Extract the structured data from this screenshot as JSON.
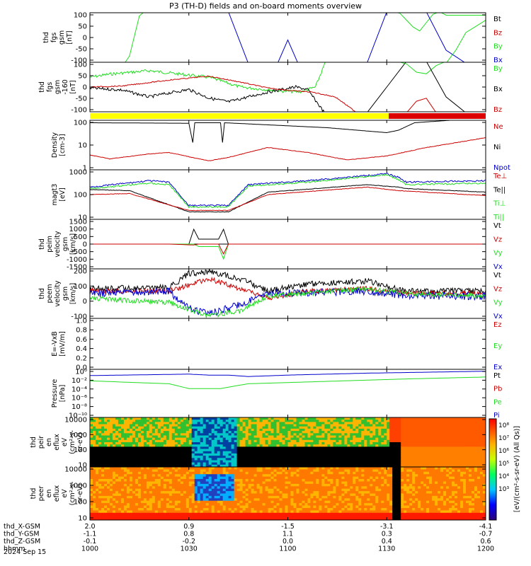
{
  "title": "P3 (TH-D) fields and on-board moments overview",
  "colors": {
    "black": "#000000",
    "red": "#cc0000",
    "green": "#22dd22",
    "blue": "#0000cc",
    "yellow": "#ffff00",
    "bar_red": "#dd0000"
  },
  "chart_data": [
    {
      "type": "line",
      "ylabel": [
        "thd",
        "fgs",
        "gsm",
        "[nT]"
      ],
      "yticks": [
        "100",
        "50",
        "0",
        "-50",
        "-100"
      ],
      "ylim": [
        -100,
        100
      ],
      "legend": [
        {
          "label": "Bt",
          "color": "#000000"
        },
        {
          "label": "Bz",
          "color": "#cc0000"
        },
        {
          "label": "By",
          "color": "#22dd22"
        },
        {
          "label": "Bx",
          "color": "#0000cc"
        }
      ]
    },
    {
      "type": "line",
      "ylabel": [
        "thd",
        "fgs",
        "gsm",
        "-160",
        "[nT]"
      ],
      "yticks": [
        "100",
        "50",
        "0",
        "-50",
        "-100"
      ],
      "ylim": [
        -130,
        100
      ],
      "legend": [
        {
          "label": "By",
          "color": "#22dd22"
        },
        {
          "label": "Bx",
          "color": "#000000"
        },
        {
          "label": "Bz",
          "color": "#cc0000"
        }
      ]
    },
    {
      "type": "bar",
      "note": "mode bar",
      "segments": [
        {
          "from": "1000",
          "to": "1135",
          "color": "yellow"
        },
        {
          "from": "1135",
          "to": "1200",
          "color": "red"
        }
      ]
    },
    {
      "type": "line",
      "ylabel": [
        "Density",
        "[cm-3]"
      ],
      "yticks": [
        "100",
        "10",
        "1"
      ],
      "yscale": "log",
      "legend": [
        {
          "label": "Ne",
          "color": "#cc0000"
        },
        {
          "label": "Ni",
          "color": "#000000"
        },
        {
          "label": "Npot",
          "color": "#0000cc"
        }
      ]
    },
    {
      "type": "line",
      "ylabel": [
        "magt3",
        "[eV]"
      ],
      "yticks": [
        "1000",
        "100",
        "10"
      ],
      "yscale": "log",
      "legend": [
        {
          "label": "Te⊥",
          "color": "#cc0000"
        },
        {
          "label": "Te||",
          "color": "#000000"
        },
        {
          "label": "Ti⊥",
          "color": "#22dd22"
        },
        {
          "label": "Ti||",
          "color": "#22dd22"
        }
      ]
    },
    {
      "type": "line",
      "ylabel": [
        "thd",
        "peim",
        "velocity",
        "gsm",
        "[km/s]"
      ],
      "yticks": [
        "1500",
        "1000",
        "500",
        "0",
        "-500",
        "-1000",
        "-1500"
      ],
      "legend": [
        {
          "label": "Vt",
          "color": "#000000"
        },
        {
          "label": "Vz",
          "color": "#cc0000"
        },
        {
          "label": "Vy",
          "color": "#22dd22"
        },
        {
          "label": "Vx",
          "color": "#0000cc"
        }
      ]
    },
    {
      "type": "line",
      "ylabel": [
        "thd",
        "peem",
        "velocity",
        "gsm",
        "[km/s]"
      ],
      "yticks": [
        "200",
        "100",
        "0",
        "-100"
      ],
      "legend": [
        {
          "label": "Vt",
          "color": "#000000"
        },
        {
          "label": "Vz",
          "color": "#cc0000"
        },
        {
          "label": "Vy",
          "color": "#22dd22"
        },
        {
          "label": "Vx",
          "color": "#0000cc"
        }
      ]
    },
    {
      "type": "line",
      "ylabel": [
        "E=-VxB",
        "[mV/m]"
      ],
      "yticks": [
        "1.0",
        "0.8",
        "0.6",
        "0.4",
        "0.2",
        "0.0"
      ],
      "legend": [
        {
          "label": "Ez",
          "color": "#cc0000"
        },
        {
          "label": "Ey",
          "color": "#22dd22"
        },
        {
          "label": "Ex",
          "color": "#0000cc"
        }
      ]
    },
    {
      "type": "line",
      "ylabel": [
        "Pressure",
        "[nPa]"
      ],
      "yticks": [
        "10⁰",
        "10⁻²",
        "10⁻⁴",
        "10⁻⁶",
        "10⁻⁸",
        "10⁻¹⁰"
      ],
      "yscale": "log",
      "legend": [
        {
          "label": "Pt",
          "color": "#000000"
        },
        {
          "label": "Pb",
          "color": "#cc0000"
        },
        {
          "label": "Pe",
          "color": "#22dd22"
        },
        {
          "label": "Pi",
          "color": "#0000cc"
        }
      ]
    },
    {
      "type": "heatmap",
      "ylabel": [
        "thd",
        "peir",
        "en",
        "eflux",
        "eV",
        "(cm²-s-",
        "sr-eV)"
      ],
      "yticks": [
        "10000",
        "1000",
        "100",
        "10"
      ]
    },
    {
      "type": "heatmap",
      "ylabel": [
        "thd",
        "peer",
        "en",
        "eflux",
        "eV",
        "(cm²-s-",
        "sr-eV)"
      ],
      "yticks": [
        "10000",
        "1000",
        "100",
        "10"
      ]
    }
  ],
  "colorbar": {
    "ticks": [
      "10⁸",
      "10⁷",
      "10⁶",
      "10⁵",
      "10⁴",
      "10³"
    ],
    "label": "[eV/(cm²-s-sr-eV) (All Qs)]"
  },
  "xaxis": {
    "rows": [
      {
        "label": "thd_X-GSM",
        "values": [
          "2.0",
          "0.9",
          "-1.5",
          "-3.1",
          "-4.1"
        ]
      },
      {
        "label": "thd_Y-GSM",
        "values": [
          "-1.1",
          "0.8",
          "1.1",
          "0.3",
          "-0.7"
        ]
      },
      {
        "label": "thd_Z-GSM",
        "values": [
          "-0.1",
          "-0.2",
          "0.0",
          "0.4",
          "0.6"
        ]
      },
      {
        "label": "hhmm",
        "values": [
          "1000",
          "1030",
          "1100",
          "1130",
          "1200"
        ]
      }
    ],
    "date": "2024 Sep 15"
  }
}
